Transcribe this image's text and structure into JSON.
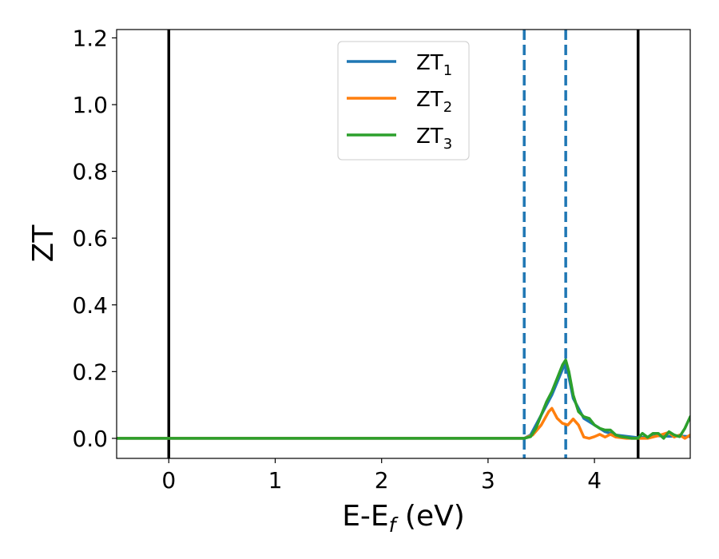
{
  "chart_data": {
    "type": "line",
    "xlabel": {
      "main": "E-E",
      "sub": "f",
      "suffix": " (eV)"
    },
    "ylabel": "ZT",
    "xlim": [
      -0.49,
      4.9
    ],
    "ylim": [
      -0.06,
      1.225
    ],
    "xticks": [
      {
        "value": 0,
        "label": "0"
      },
      {
        "value": 1,
        "label": "1"
      },
      {
        "value": 2,
        "label": "2"
      },
      {
        "value": 3,
        "label": "3"
      },
      {
        "value": 4,
        "label": "4"
      }
    ],
    "yticks": [
      {
        "value": 0.0,
        "label": "0.0"
      },
      {
        "value": 0.2,
        "label": "0.2"
      },
      {
        "value": 0.4,
        "label": "0.4"
      },
      {
        "value": 0.6,
        "label": "0.6"
      },
      {
        "value": 0.8,
        "label": "0.8"
      },
      {
        "value": 1.0,
        "label": "1.0"
      },
      {
        "value": 1.2,
        "label": "1.2"
      }
    ],
    "legend_position": "top-center",
    "grid": false,
    "vlines": [
      {
        "x": 0.0,
        "style": "solid",
        "color": "#000000"
      },
      {
        "x": 4.41,
        "style": "solid",
        "color": "#000000"
      },
      {
        "x": 3.34,
        "style": "dashed",
        "color": "#1f77b4"
      },
      {
        "x": 3.73,
        "style": "dashed",
        "color": "#1f77b4"
      }
    ],
    "series": [
      {
        "name": "ZT",
        "sub": "1",
        "color": "#1f77b4",
        "x": [
          -0.49,
          3.34,
          3.4,
          3.5,
          3.6,
          3.73,
          3.8,
          3.9,
          4.0,
          4.1,
          4.2,
          4.41,
          4.5,
          4.6,
          4.7,
          4.8,
          4.9
        ],
        "y": [
          0,
          0,
          0.01,
          0.07,
          0.13,
          0.23,
          0.12,
          0.06,
          0.04,
          0.02,
          0.01,
          0.002,
          0.004,
          0.008,
          0.006,
          0.007,
          0.005
        ]
      },
      {
        "name": "ZT",
        "sub": "2",
        "color": "#ff7f0e",
        "x": [
          -0.49,
          3.34,
          3.42,
          3.5,
          3.57,
          3.6,
          3.65,
          3.7,
          3.75,
          3.8,
          3.85,
          3.9,
          3.95,
          4.0,
          4.05,
          4.1,
          4.15,
          4.2,
          4.3,
          4.41,
          4.5,
          4.6,
          4.7,
          4.75,
          4.8,
          4.85,
          4.9
        ],
        "y": [
          0,
          0,
          0.01,
          0.04,
          0.08,
          0.09,
          0.06,
          0.045,
          0.04,
          0.058,
          0.04,
          0.004,
          0.0,
          0.005,
          0.012,
          0.004,
          0.012,
          0.004,
          0.0,
          0.0,
          0.0,
          0.008,
          0.018,
          0.004,
          0.01,
          0.0,
          0.01
        ]
      },
      {
        "name": "ZT",
        "sub": "3",
        "color": "#2ca02c",
        "x": [
          -0.49,
          3.34,
          3.4,
          3.45,
          3.5,
          3.55,
          3.6,
          3.65,
          3.7,
          3.73,
          3.76,
          3.8,
          3.85,
          3.9,
          3.95,
          4.0,
          4.05,
          4.1,
          4.15,
          4.2,
          4.25,
          4.3,
          4.35,
          4.41,
          4.45,
          4.5,
          4.55,
          4.6,
          4.65,
          4.7,
          4.75,
          4.8,
          4.85,
          4.9
        ],
        "y": [
          0,
          0,
          0.005,
          0.03,
          0.07,
          0.11,
          0.14,
          0.18,
          0.22,
          0.235,
          0.2,
          0.13,
          0.08,
          0.065,
          0.06,
          0.04,
          0.03,
          0.025,
          0.025,
          0.01,
          0.005,
          0.003,
          0.0,
          0.0,
          0.015,
          0.003,
          0.015,
          0.015,
          0.0,
          0.02,
          0.01,
          0.005,
          0.03,
          0.065
        ]
      }
    ]
  }
}
